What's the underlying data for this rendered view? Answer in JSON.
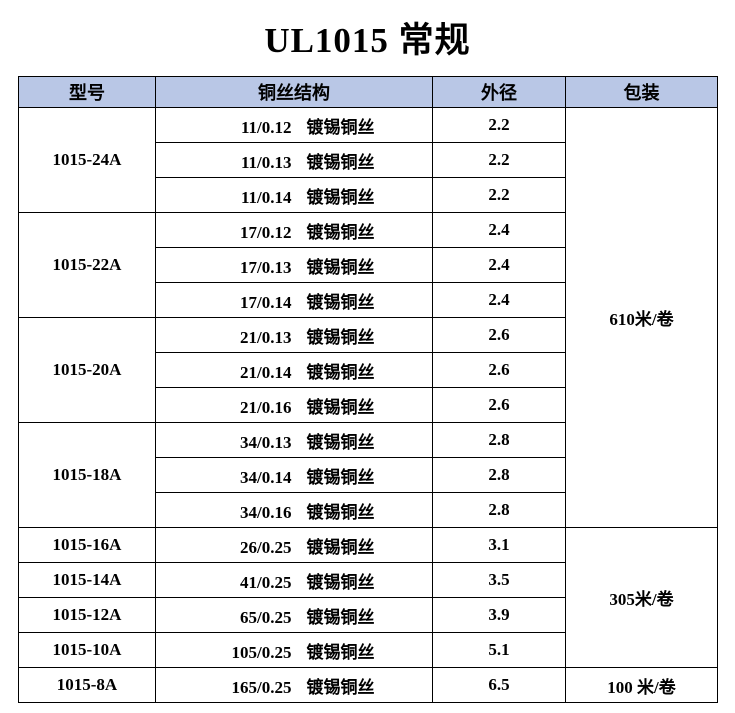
{
  "title": "UL1015 常规",
  "table": {
    "headers": [
      "型号",
      "铜丝结构",
      "外径",
      "包装"
    ],
    "groups": [
      {
        "model": "1015-24A",
        "rows": [
          {
            "strands": "11/0.12",
            "wire": "镀锡铜丝",
            "od": "2.2"
          },
          {
            "strands": "11/0.13",
            "wire": "镀锡铜丝",
            "od": "2.2"
          },
          {
            "strands": "11/0.14",
            "wire": "镀锡铜丝",
            "od": "2.2"
          }
        ]
      },
      {
        "model": "1015-22A",
        "rows": [
          {
            "strands": "17/0.12",
            "wire": "镀锡铜丝",
            "od": "2.4"
          },
          {
            "strands": "17/0.13",
            "wire": "镀锡铜丝",
            "od": "2.4"
          },
          {
            "strands": "17/0.14",
            "wire": "镀锡铜丝",
            "od": "2.4"
          }
        ]
      },
      {
        "model": "1015-20A",
        "rows": [
          {
            "strands": "21/0.13",
            "wire": "镀锡铜丝",
            "od": "2.6"
          },
          {
            "strands": "21/0.14",
            "wire": "镀锡铜丝",
            "od": "2.6"
          },
          {
            "strands": "21/0.16",
            "wire": "镀锡铜丝",
            "od": "2.6"
          }
        ]
      },
      {
        "model": "1015-18A",
        "rows": [
          {
            "strands": "34/0.13",
            "wire": "镀锡铜丝",
            "od": "2.8"
          },
          {
            "strands": "34/0.14",
            "wire": "镀锡铜丝",
            "od": "2.8"
          },
          {
            "strands": "34/0.16",
            "wire": "镀锡铜丝",
            "od": "2.8"
          }
        ]
      },
      {
        "model": "1015-16A",
        "rows": [
          {
            "strands": "26/0.25",
            "wire": "镀锡铜丝",
            "od": "3.1"
          }
        ]
      },
      {
        "model": "1015-14A",
        "rows": [
          {
            "strands": "41/0.25",
            "wire": "镀锡铜丝",
            "od": "3.5"
          }
        ]
      },
      {
        "model": "1015-12A",
        "rows": [
          {
            "strands": "65/0.25",
            "wire": "镀锡铜丝",
            "od": "3.9"
          }
        ]
      },
      {
        "model": "1015-10A",
        "rows": [
          {
            "strands": "105/0.25",
            "wire": "镀锡铜丝",
            "od": "5.1"
          }
        ]
      },
      {
        "model": "1015-8A",
        "rows": [
          {
            "strands": "165/0.25",
            "wire": "镀锡铜丝",
            "od": "6.5"
          }
        ]
      }
    ],
    "packaging": [
      {
        "label": "610米/卷",
        "rows": 12
      },
      {
        "label": "305米/卷",
        "rows": 4
      },
      {
        "label": "100 米/卷",
        "rows": 1
      }
    ]
  },
  "chart_data": {
    "type": "table",
    "title": "UL1015 常规",
    "columns": [
      "型号",
      "铜丝结构",
      "外径",
      "包装"
    ],
    "rows": [
      [
        "1015-24A",
        "11/0.12 镀锡铜丝",
        "2.2",
        "610米/卷"
      ],
      [
        "1015-24A",
        "11/0.13 镀锡铜丝",
        "2.2",
        "610米/卷"
      ],
      [
        "1015-24A",
        "11/0.14 镀锡铜丝",
        "2.2",
        "610米/卷"
      ],
      [
        "1015-22A",
        "17/0.12 镀锡铜丝",
        "2.4",
        "610米/卷"
      ],
      [
        "1015-22A",
        "17/0.13 镀锡铜丝",
        "2.4",
        "610米/卷"
      ],
      [
        "1015-22A",
        "17/0.14 镀锡铜丝",
        "2.4",
        "610米/卷"
      ],
      [
        "1015-20A",
        "21/0.13 镀锡铜丝",
        "2.6",
        "610米/卷"
      ],
      [
        "1015-20A",
        "21/0.14 镀锡铜丝",
        "2.6",
        "610米/卷"
      ],
      [
        "1015-20A",
        "21/0.16 镀锡铜丝",
        "2.6",
        "610米/卷"
      ],
      [
        "1015-18A",
        "34/0.13 镀锡铜丝",
        "2.8",
        "610米/卷"
      ],
      [
        "1015-18A",
        "34/0.14 镀锡铜丝",
        "2.8",
        "610米/卷"
      ],
      [
        "1015-18A",
        "34/0.16 镀锡铜丝",
        "2.8",
        "610米/卷"
      ],
      [
        "1015-16A",
        "26/0.25 镀锡铜丝",
        "3.1",
        "305米/卷"
      ],
      [
        "1015-14A",
        "41/0.25 镀锡铜丝",
        "3.5",
        "305米/卷"
      ],
      [
        "1015-12A",
        "65/0.25 镀锡铜丝",
        "3.9",
        "305米/卷"
      ],
      [
        "1015-10A",
        "105/0.25 镀锡铜丝",
        "5.1",
        "305米/卷"
      ],
      [
        "1015-8A",
        "165/0.25 镀锡铜丝",
        "6.5",
        "100 米/卷"
      ]
    ]
  },
  "colors": {
    "header_bg": "#b9c7e6",
    "border": "#000000",
    "text": "#000000",
    "background": "#ffffff"
  }
}
